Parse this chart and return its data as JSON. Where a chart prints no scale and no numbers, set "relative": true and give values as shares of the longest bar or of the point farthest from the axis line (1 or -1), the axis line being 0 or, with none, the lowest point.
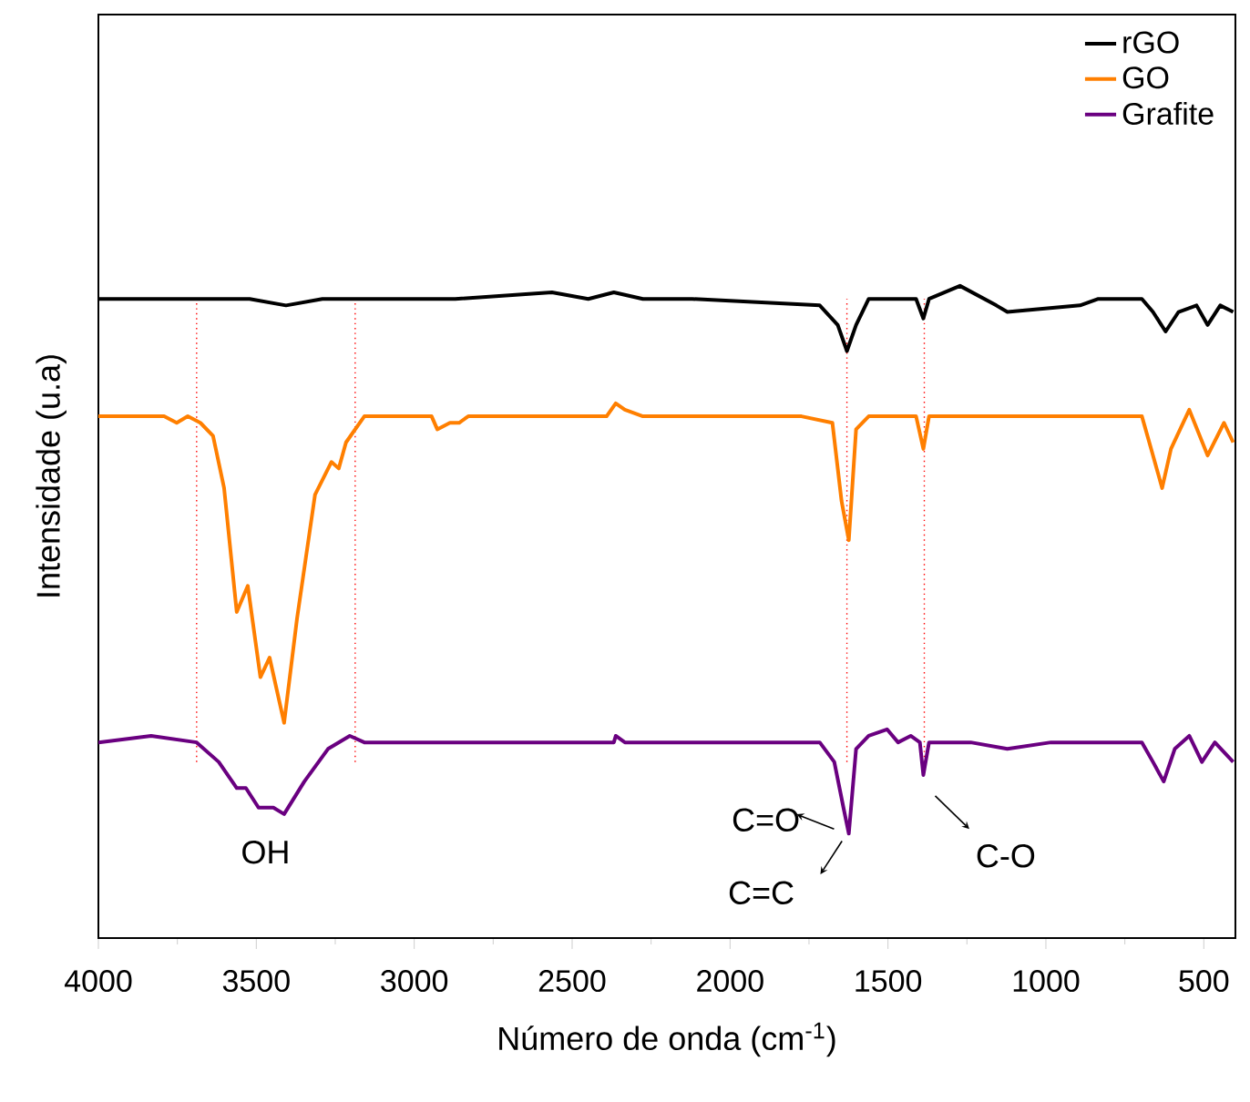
{
  "chart_data": {
    "type": "line",
    "relative": true,
    "xlabel": "Número de onda (cm$^{-1}$)",
    "ylabel": "Intensidade (u.a)",
    "xlim": [
      4000,
      400
    ],
    "xticks": [
      4000,
      3500,
      3000,
      2500,
      2000,
      1500,
      1000,
      500
    ],
    "legend": "top right",
    "grid": false,
    "marker": "none",
    "line_style": "solid",
    "series": [
      {
        "name": "rGO",
        "color": "#000000",
        "x": [
          4000,
          3879,
          3689,
          3521,
          3406,
          3291,
          3100,
          2870,
          2564,
          2449,
          2368,
          2276,
          2178,
          2120,
          1716,
          1659,
          1630,
          1601,
          1561,
          1411,
          1388,
          1370,
          1272,
          1157,
          1122,
          892,
          834,
          696,
          661,
          621,
          580,
          523,
          488,
          448,
          407
        ],
        "values": [
          0.98,
          0.98,
          0.98,
          0.98,
          0.97,
          0.98,
          0.98,
          0.98,
          0.99,
          0.98,
          0.99,
          0.98,
          0.98,
          0.98,
          0.97,
          0.94,
          0.9,
          0.94,
          0.98,
          0.98,
          0.95,
          0.98,
          1.0,
          0.97,
          0.96,
          0.97,
          0.98,
          0.98,
          0.96,
          0.93,
          0.96,
          0.97,
          0.94,
          0.97,
          0.96
        ]
      },
      {
        "name": "GO",
        "color": "#ff7f00",
        "x": [
          4000,
          3792,
          3752,
          3717,
          3677,
          3637,
          3602,
          3562,
          3527,
          3487,
          3458,
          3412,
          3371,
          3314,
          3262,
          3239,
          3216,
          3158,
          2945,
          2927,
          2887,
          2858,
          2829,
          2391,
          2362,
          2333,
          2276,
          2178,
          1774,
          1676,
          1647,
          1624,
          1601,
          1561,
          1411,
          1388,
          1370,
          1082,
          696,
          661,
          632,
          604,
          546,
          488,
          436,
          407
        ],
        "values": [
          0.8,
          0.8,
          0.79,
          0.8,
          0.79,
          0.77,
          0.69,
          0.5,
          0.54,
          0.4,
          0.43,
          0.33,
          0.49,
          0.68,
          0.73,
          0.72,
          0.76,
          0.8,
          0.8,
          0.78,
          0.79,
          0.79,
          0.8,
          0.8,
          0.82,
          0.81,
          0.8,
          0.8,
          0.8,
          0.79,
          0.67,
          0.61,
          0.78,
          0.8,
          0.8,
          0.75,
          0.8,
          0.8,
          0.8,
          0.74,
          0.69,
          0.75,
          0.81,
          0.74,
          0.79,
          0.76
        ]
      },
      {
        "name": "Grafite",
        "color": "#6a0080",
        "x": [
          4000,
          3833,
          3689,
          3619,
          3562,
          3533,
          3493,
          3446,
          3412,
          3348,
          3273,
          3204,
          3158,
          2368,
          2362,
          2333,
          2235,
          1716,
          1670,
          1641,
          1624,
          1601,
          1561,
          1503,
          1468,
          1428,
          1399,
          1388,
          1370,
          1238,
          1122,
          984,
          696,
          661,
          627,
          592,
          546,
          506,
          465,
          407
        ],
        "values": [
          0.3,
          0.31,
          0.3,
          0.27,
          0.23,
          0.23,
          0.2,
          0.2,
          0.19,
          0.24,
          0.29,
          0.31,
          0.3,
          0.3,
          0.31,
          0.3,
          0.3,
          0.3,
          0.27,
          0.2,
          0.16,
          0.29,
          0.31,
          0.32,
          0.3,
          0.31,
          0.3,
          0.25,
          0.3,
          0.3,
          0.29,
          0.3,
          0.3,
          0.27,
          0.24,
          0.29,
          0.31,
          0.27,
          0.3,
          0.27
        ]
      }
    ],
    "ref_lines": [
      {
        "axis": "x",
        "value": 3689,
        "color": "#ff0000",
        "line_style": "dotted"
      },
      {
        "axis": "x",
        "value": 3187,
        "color": "#ff0000",
        "line_style": "dotted"
      },
      {
        "axis": "x",
        "value": 1630,
        "color": "#ff0000",
        "line_style": "dotted"
      },
      {
        "axis": "x",
        "value": 1385,
        "color": "#ff0000",
        "line_style": "dotted"
      }
    ],
    "annotations": [
      "OH",
      "C=O",
      "C=C",
      "C-O"
    ]
  }
}
